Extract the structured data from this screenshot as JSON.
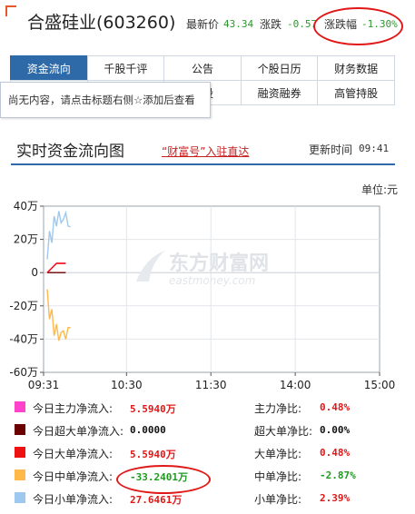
{
  "header": {
    "stock_name": "合盛硅业(603260)",
    "latest_price_label": "最新价",
    "latest_price": "43.34",
    "change_label": "涨跌",
    "change": "-0.57",
    "change_pct_label": "涨跌幅",
    "change_pct": "-1.30%"
  },
  "tabs": {
    "row1": [
      "资金流向",
      "千股千评",
      "公告",
      "个股日历",
      "财务数据"
    ],
    "row2": [
      "",
      "",
      "持股",
      "融资融券",
      "高管持股"
    ],
    "active": "资金流向"
  },
  "tooltip": "尚无内容，请点击标题右侧☆添加后查看",
  "section": {
    "title": "实时资金流向图",
    "link": "“财富号”入驻直达",
    "update_label": "更新时间",
    "update_time": "09:41",
    "unit": "单位:元"
  },
  "watermark": {
    "cn": "东方财富网",
    "en": "eastmoney.com"
  },
  "colors": {
    "main": "#ff44cc",
    "super": "#6b0000",
    "large": "#ee1111",
    "medium": "#ffb84a",
    "small": "#9ec8ee",
    "accent": "#2f6aa8",
    "annotation": "#e01818"
  },
  "chart_data": {
    "type": "line",
    "x_ticks": [
      "09:31",
      "10:30",
      "11:30",
      "14:00",
      "15:00"
    ],
    "y_ticks": [
      "40万",
      "20万",
      "0",
      "-20万",
      "-40万",
      "-60万"
    ],
    "ylim": [
      -60,
      40
    ],
    "y_unit": "万",
    "series": [
      {
        "name": "今日主力净流入",
        "color": "#ff44cc",
        "x": [
          "09:31",
          "09:35",
          "09:41"
        ],
        "values": [
          0,
          5.6,
          5.6
        ]
      },
      {
        "name": "今日超大单净流入",
        "color": "#6b0000",
        "x": [
          "09:31",
          "09:35",
          "09:41"
        ],
        "values": [
          0,
          0,
          0
        ]
      },
      {
        "name": "今日大单净流入",
        "color": "#ee1111",
        "x": [
          "09:31",
          "09:35",
          "09:41"
        ],
        "values": [
          0,
          5.6,
          5.6
        ]
      },
      {
        "name": "今日中单净流入",
        "color": "#ffb84a",
        "x": [
          "09:31",
          "09:32",
          "09:33",
          "09:34",
          "09:35",
          "09:36",
          "09:37",
          "09:38",
          "09:39",
          "09:40",
          "09:41"
        ],
        "values": [
          -10,
          -28,
          -22,
          -38,
          -31,
          -41,
          -36,
          -35,
          -40,
          -33,
          -33.2
        ]
      },
      {
        "name": "今日小单净流入",
        "color": "#9ec8ee",
        "x": [
          "09:31",
          "09:32",
          "09:33",
          "09:34",
          "09:35",
          "09:36",
          "09:37",
          "09:38",
          "09:39",
          "09:40",
          "09:41"
        ],
        "values": [
          8,
          25,
          18,
          34,
          28,
          37,
          30,
          32,
          36,
          28,
          27.6
        ]
      }
    ]
  },
  "legend": [
    {
      "label": "今日主力净流入:",
      "value": "5.5940万",
      "value_color": "red",
      "ratio_label": "主力净比:",
      "ratio": "0.48%",
      "ratio_color": "red",
      "swatch": "#ff44cc"
    },
    {
      "label": "今日超大单净流入:",
      "value": "0.0000",
      "value_color": "black",
      "ratio_label": "超大单净比:",
      "ratio": "0.00%",
      "ratio_color": "black",
      "swatch": "#6b0000"
    },
    {
      "label": "今日大单净流入:",
      "value": "5.5940万",
      "value_color": "red",
      "ratio_label": "大单净比:",
      "ratio": "0.48%",
      "ratio_color": "red",
      "swatch": "#ee1111"
    },
    {
      "label": "今日中单净流入:",
      "value": "-33.2401万",
      "value_color": "green",
      "ratio_label": "中单净比:",
      "ratio": "-2.87%",
      "ratio_color": "green",
      "swatch": "#ffb84a"
    },
    {
      "label": "今日小单净流入:",
      "value": "27.6461万",
      "value_color": "red",
      "ratio_label": "小单净比:",
      "ratio": "2.39%",
      "ratio_color": "red",
      "swatch": "#9ec8ee"
    }
  ]
}
